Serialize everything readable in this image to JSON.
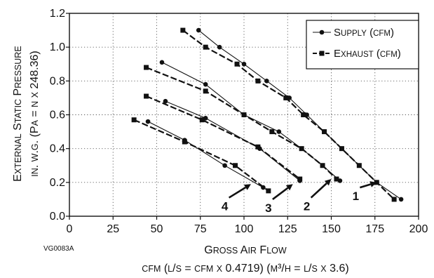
{
  "chart_data": {
    "type": "line",
    "xlabel": "Gross Air Flow",
    "xlabel_units": "cfm (l/s = cfm x 0.4719) (m³/h = l/s x 3.6)",
    "ylabel": "External Static Pressure",
    "ylabel_units": "in. w.g. (Pa = n x 248.36)",
    "figure_code": "VG0083A",
    "xlim": [
      0,
      200
    ],
    "ylim": [
      0,
      1.2
    ],
    "x_ticks": [
      0,
      25,
      50,
      75,
      100,
      125,
      150,
      175,
      200
    ],
    "x_tick_labels": [
      "0",
      "25",
      "50",
      "75",
      "100",
      "125",
      "150",
      "175",
      "200"
    ],
    "y_ticks": [
      0,
      0.2,
      0.4,
      0.6,
      0.8,
      1.0,
      1.2
    ],
    "y_tick_labels": [
      "0.0",
      "0.2",
      "0.4",
      "0.6",
      "0.8",
      "1.0",
      "1.2"
    ],
    "grid": true,
    "legend_position": "top-right",
    "legend": [
      {
        "label": "Supply (cfm)",
        "marker": "circle",
        "style": "solid"
      },
      {
        "label": "Exhaust (cfm)",
        "marker": "square",
        "style": "dashed"
      }
    ],
    "series": [
      {
        "curve": "1",
        "kind": "supply",
        "x": [
          74,
          86,
          100,
          113,
          126,
          136,
          146,
          156,
          166,
          176,
          190
        ],
        "y": [
          1.1,
          1.0,
          0.9,
          0.8,
          0.7,
          0.6,
          0.5,
          0.4,
          0.3,
          0.2,
          0.1
        ]
      },
      {
        "curve": "1",
        "kind": "exhaust",
        "x": [
          65,
          78,
          96,
          108,
          124,
          134,
          146,
          156,
          166,
          176,
          186
        ],
        "y": [
          1.1,
          1.0,
          0.9,
          0.8,
          0.7,
          0.6,
          0.5,
          0.4,
          0.3,
          0.2,
          0.1
        ]
      },
      {
        "curve": "2",
        "kind": "supply",
        "x": [
          53,
          78,
          100,
          120,
          133,
          145,
          155
        ],
        "y": [
          0.91,
          0.78,
          0.6,
          0.5,
          0.4,
          0.3,
          0.21
        ]
      },
      {
        "curve": "2",
        "kind": "exhaust",
        "x": [
          44,
          78,
          100,
          116,
          133,
          145,
          153
        ],
        "y": [
          0.88,
          0.74,
          0.6,
          0.5,
          0.4,
          0.3,
          0.22
        ]
      },
      {
        "curve": "3",
        "kind": "supply",
        "x": [
          55,
          78,
          109,
          132
        ],
        "y": [
          0.68,
          0.58,
          0.4,
          0.21
        ]
      },
      {
        "curve": "3",
        "kind": "exhaust",
        "x": [
          44,
          76,
          108,
          132
        ],
        "y": [
          0.71,
          0.57,
          0.41,
          0.22
        ]
      },
      {
        "curve": "4",
        "kind": "supply",
        "x": [
          45,
          66,
          89,
          111
        ],
        "y": [
          0.56,
          0.45,
          0.3,
          0.17
        ]
      },
      {
        "curve": "4",
        "kind": "exhaust",
        "x": [
          37,
          66,
          95,
          114
        ],
        "y": [
          0.57,
          0.44,
          0.3,
          0.15
        ]
      }
    ],
    "curve_labels": [
      {
        "text": "1",
        "x": 164,
        "y": 0.12,
        "arrow_to": [
          176,
          0.2
        ]
      },
      {
        "text": "2",
        "x": 136,
        "y": 0.06,
        "arrow_to": [
          150,
          0.22
        ]
      },
      {
        "text": "3",
        "x": 114,
        "y": 0.05,
        "arrow_to": [
          128,
          0.19
        ]
      },
      {
        "text": "4",
        "x": 89,
        "y": 0.06,
        "arrow_to": [
          104,
          0.19
        ]
      }
    ]
  }
}
